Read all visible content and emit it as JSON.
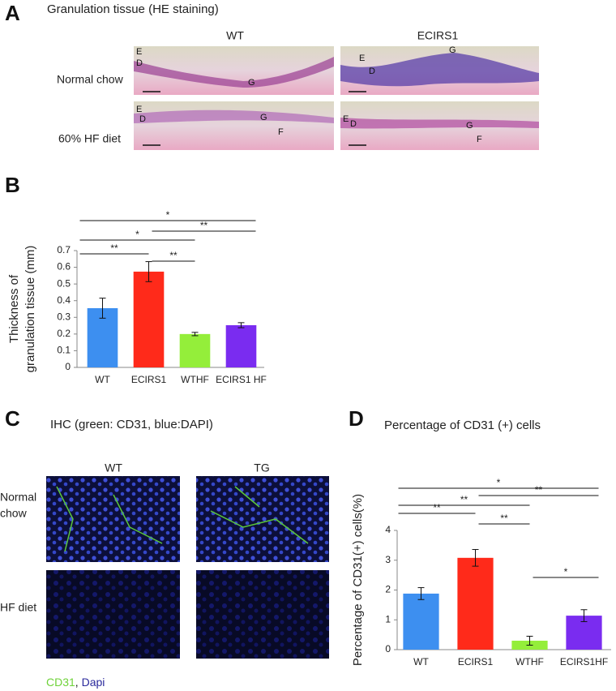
{
  "panel_a": {
    "letter": "A",
    "title": "Granulation tissue (HE staining)",
    "columns": [
      "WT",
      "ECIRS1"
    ],
    "rows": [
      "Normal chow",
      "60% HF diet"
    ],
    "image_labels": [
      [
        "E",
        "D",
        "G"
      ],
      [
        "E",
        "D",
        "G"
      ],
      [
        "E",
        "D",
        "G",
        "F"
      ],
      [
        "E",
        "D",
        "G",
        "F"
      ]
    ]
  },
  "panel_c": {
    "letter": "C",
    "title": "IHC (green: CD31, blue:DAPI)",
    "columns": [
      "WT",
      "TG"
    ],
    "rows": [
      [
        "Normal",
        "chow"
      ],
      [
        "HF diet"
      ]
    ],
    "legend": [
      {
        "text": "CD31",
        "color": "#6fd23a"
      },
      {
        "text": "Dapi",
        "color": "#2b2a9c"
      }
    ],
    "legend_separator": ", "
  },
  "chart_data": [
    {
      "type": "bar",
      "letter": "B",
      "y_label": [
        "Thickness of",
        "granulation tissue (mm)"
      ],
      "categories": [
        "WT",
        "ECIRS1",
        "WTHF",
        "ECIRS1 HF"
      ],
      "values": [
        0.355,
        0.574,
        0.2,
        0.253
      ],
      "errors": [
        0.06,
        0.06,
        0.01,
        0.015
      ],
      "colors": [
        "#3d8ff0",
        "#ff2a1a",
        "#94ee3a",
        "#7a2cf0"
      ],
      "ylim": [
        0,
        0.7
      ],
      "yticks": [
        0,
        0.1,
        0.2,
        0.3,
        0.4,
        0.5,
        0.6,
        0.7
      ],
      "grid": false,
      "comparisons": [
        {
          "between": [
            "WT",
            "ECIRS1 HF"
          ],
          "label": "*"
        },
        {
          "between": [
            "ECIRS1",
            "ECIRS1 HF"
          ],
          "label": "**"
        },
        {
          "between": [
            "WT",
            "WTHF"
          ],
          "label": "*"
        },
        {
          "between": [
            "WT",
            "ECIRS1"
          ],
          "label": "**"
        },
        {
          "between": [
            "ECIRS1",
            "WTHF"
          ],
          "label": "**"
        }
      ]
    },
    {
      "type": "bar",
      "letter": "D",
      "title": "Percentage of CD31 (+) cells",
      "y_label": [
        "Percentage of CD31(+) cells(%)"
      ],
      "categories": [
        "WT",
        "ECIRS1",
        "WTHF",
        "ECIRS1HF"
      ],
      "values": [
        1.88,
        3.08,
        0.3,
        1.14
      ],
      "errors": [
        0.2,
        0.28,
        0.15,
        0.2
      ],
      "colors": [
        "#3d8ff0",
        "#ff2a1a",
        "#94ee3a",
        "#7a2cf0"
      ],
      "ylim": [
        0,
        4
      ],
      "yticks": [
        0,
        1,
        2,
        3,
        4
      ],
      "grid": false,
      "comparisons": [
        {
          "between": [
            "WT",
            "ECIRS1HF"
          ],
          "label": "*"
        },
        {
          "between": [
            "ECIRS1",
            "ECIRS1HF"
          ],
          "label": "**"
        },
        {
          "between": [
            "WT",
            "WTHF"
          ],
          "label": "**"
        },
        {
          "between": [
            "WT",
            "ECIRS1"
          ],
          "label": "**"
        },
        {
          "between": [
            "ECIRS1",
            "WTHF"
          ],
          "label": "**"
        },
        {
          "between": [
            "WTHF",
            "ECIRS1HF"
          ],
          "label": "*"
        }
      ]
    }
  ]
}
